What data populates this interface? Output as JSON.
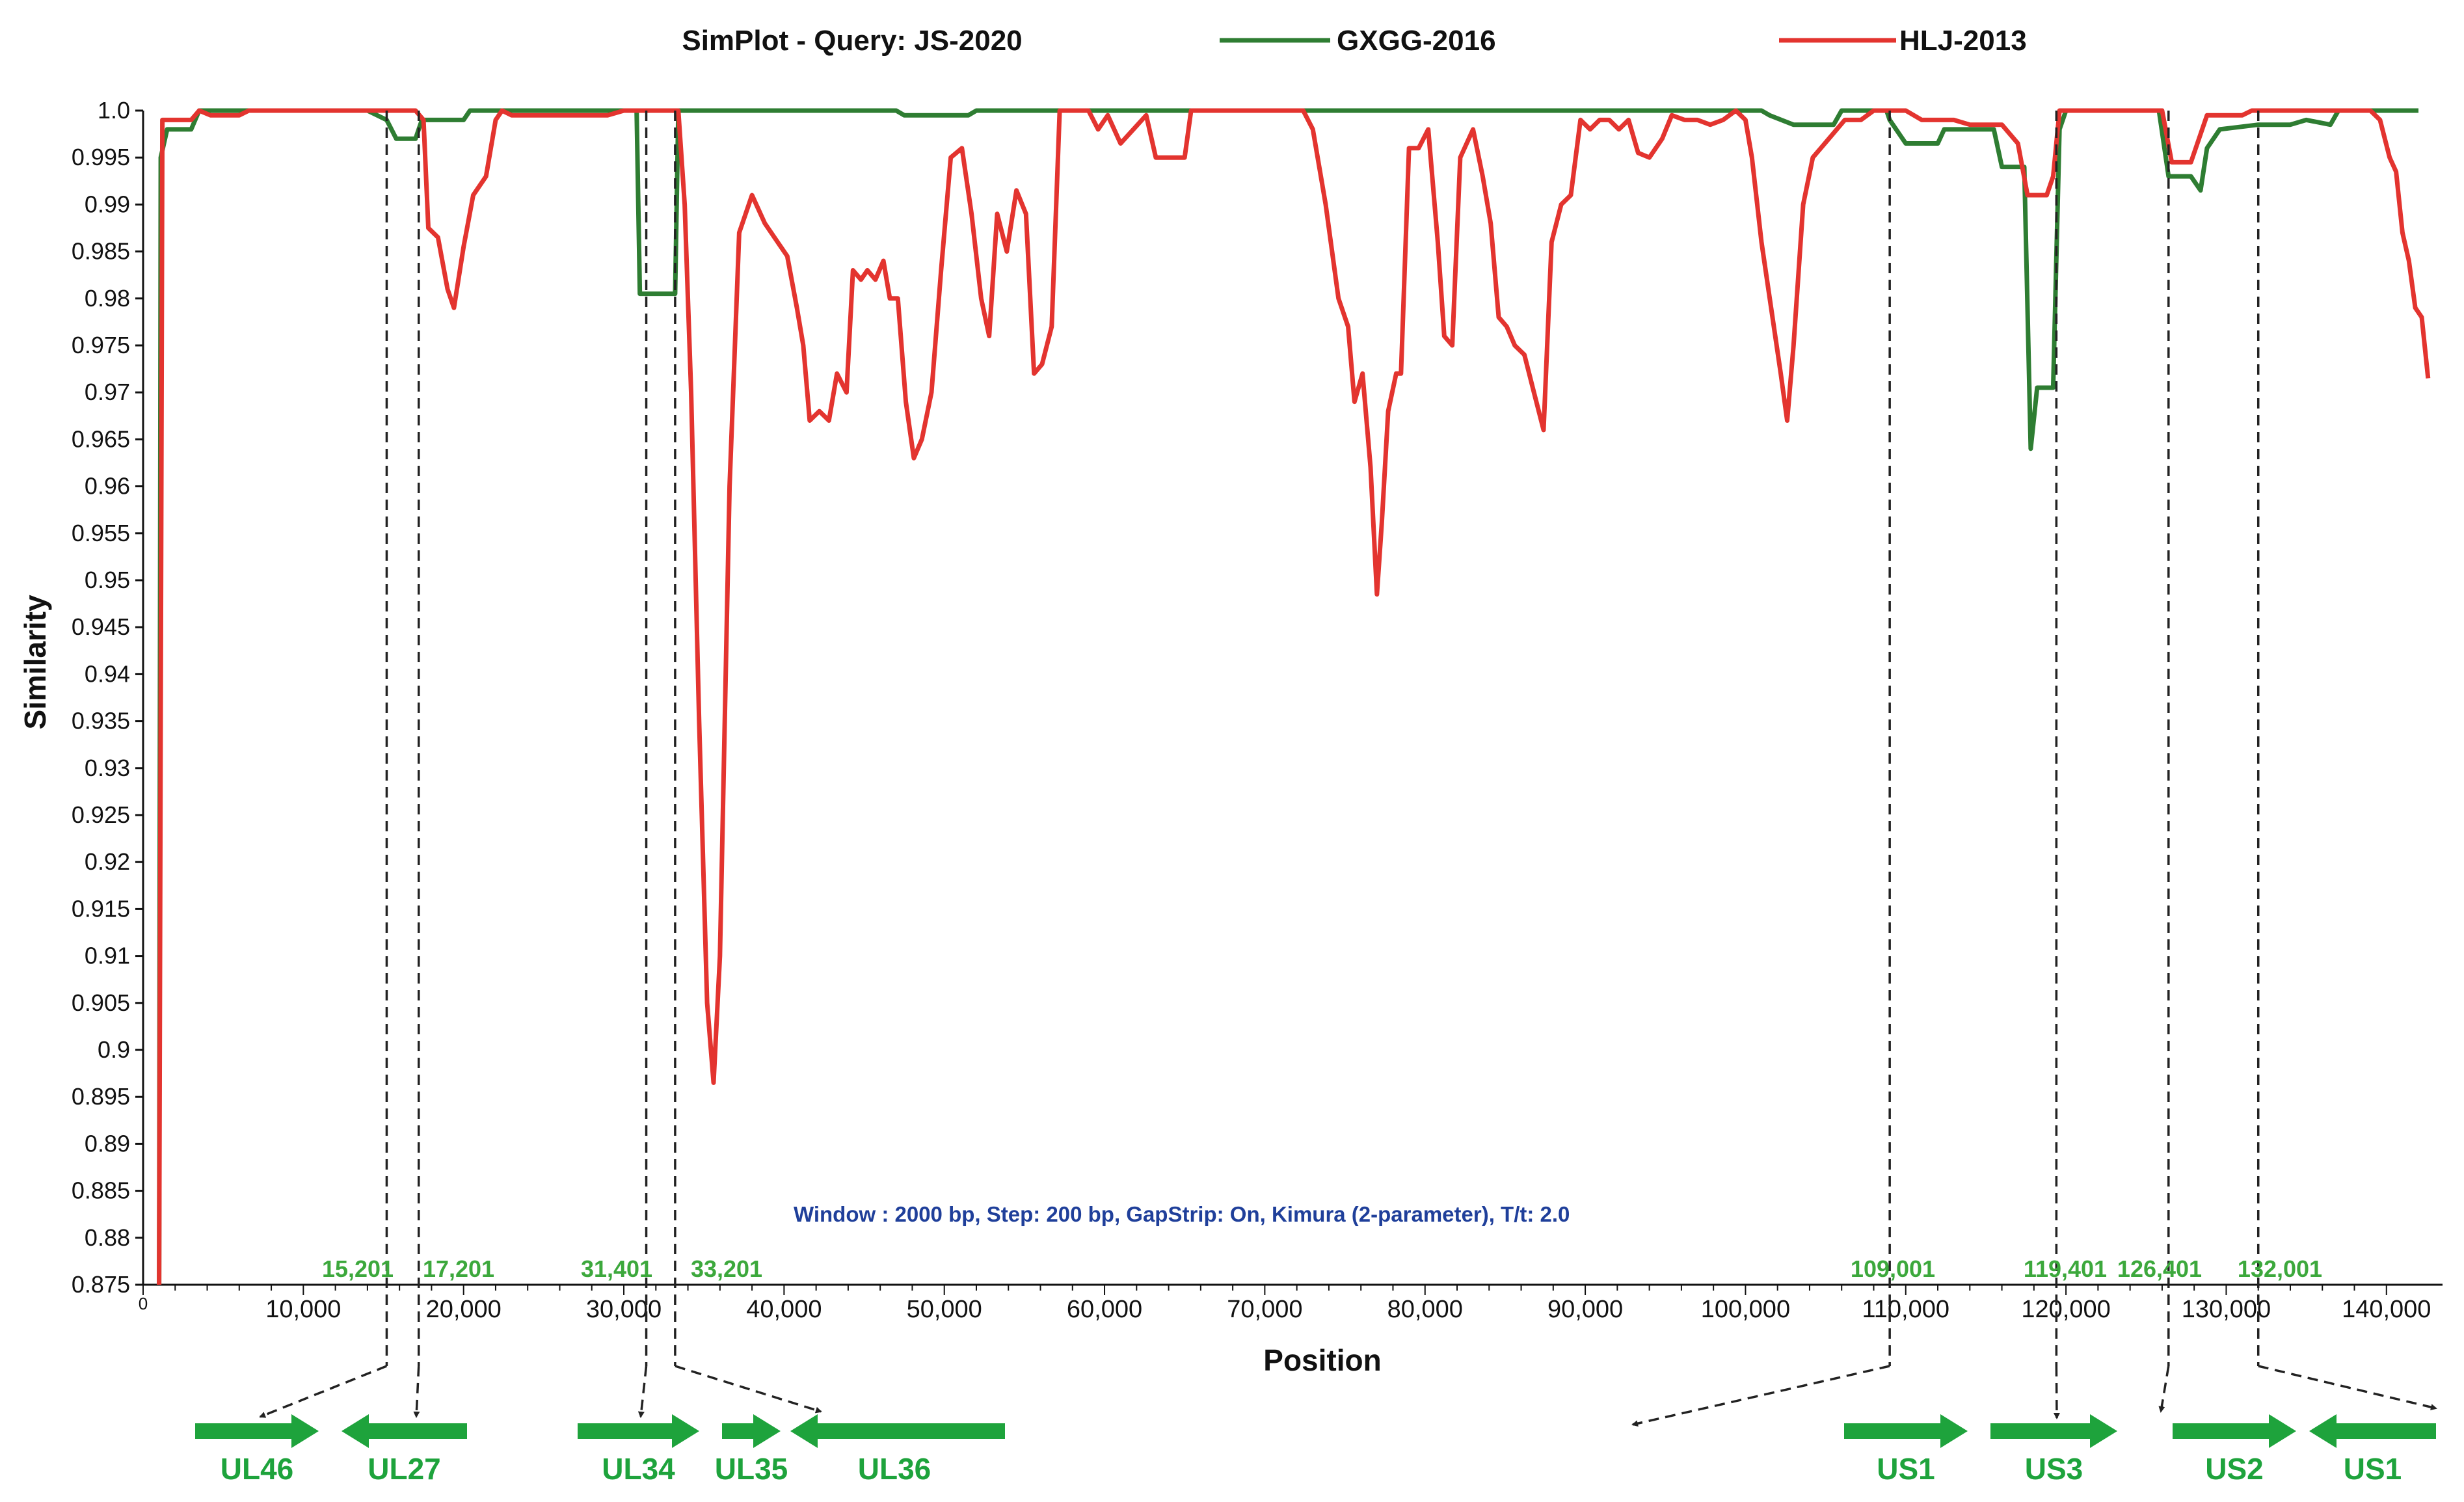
{
  "chart_data": {
    "type": "line",
    "title": "SimPlot - Query: JS-2020",
    "xlabel": "Position",
    "ylabel": "Similarity",
    "xlim": [
      0,
      143500
    ],
    "ylim": [
      0.875,
      1.0
    ],
    "x_ticks": [
      10000,
      20000,
      30000,
      40000,
      50000,
      60000,
      70000,
      80000,
      90000,
      100000,
      110000,
      120000,
      130000,
      140000
    ],
    "x_tick_labels": [
      "10,000",
      "20,000",
      "30,000",
      "40,000",
      "50,000",
      "60,000",
      "70,000",
      "80,000",
      "90,000",
      "100,000",
      "110,000",
      "120,000",
      "130,000",
      "140,000"
    ],
    "x_origin_label": "0",
    "y_ticks": [
      0.875,
      0.88,
      0.885,
      0.89,
      0.895,
      0.9,
      0.905,
      0.91,
      0.915,
      0.92,
      0.925,
      0.93,
      0.935,
      0.94,
      0.945,
      0.95,
      0.955,
      0.96,
      0.965,
      0.97,
      0.975,
      0.98,
      0.985,
      0.99,
      0.995,
      1.0
    ],
    "y_tick_labels": [
      "0.875",
      "0.88",
      "0.885",
      "0.89",
      "0.895",
      "0.9",
      "0.905",
      "0.91",
      "0.915",
      "0.92",
      "0.925",
      "0.93",
      "0.935",
      "0.94",
      "0.945",
      "0.95",
      "0.955",
      "0.96",
      "0.965",
      "0.97",
      "0.975",
      "0.98",
      "0.985",
      "0.99",
      "0.995",
      "1.0"
    ],
    "grid": false,
    "legend_position": "top",
    "annotation": "Window : 2000 bp, Step: 200 bp, GapStrip: On, Kimura (2-parameter), T/t: 2.0",
    "series": [
      {
        "name": "GXGG-2016",
        "color": "#2e7d32",
        "points": [
          [
            1000,
            0.875
          ],
          [
            1100,
            0.995
          ],
          [
            1500,
            0.998
          ],
          [
            3000,
            0.998
          ],
          [
            3500,
            1.0
          ],
          [
            14000,
            1.0
          ],
          [
            15200,
            0.999
          ],
          [
            15800,
            0.997
          ],
          [
            17000,
            0.997
          ],
          [
            17400,
            0.999
          ],
          [
            20000,
            0.999
          ],
          [
            20400,
            1.0
          ],
          [
            30800,
            1.0
          ],
          [
            31000,
            0.9805
          ],
          [
            33200,
            0.9805
          ],
          [
            33400,
            1.0
          ],
          [
            47000,
            1.0
          ],
          [
            47500,
            0.9995
          ],
          [
            51500,
            0.9995
          ],
          [
            52000,
            1.0
          ],
          [
            101000,
            1.0
          ],
          [
            101500,
            0.9995
          ],
          [
            103000,
            0.9985
          ],
          [
            105500,
            0.9985
          ],
          [
            106000,
            1.0
          ],
          [
            108800,
            1.0
          ],
          [
            109000,
            0.999
          ],
          [
            110000,
            0.9965
          ],
          [
            112000,
            0.9965
          ],
          [
            112400,
            0.998
          ],
          [
            115500,
            0.998
          ],
          [
            116000,
            0.994
          ],
          [
            117400,
            0.994
          ],
          [
            117800,
            0.964
          ],
          [
            118200,
            0.9705
          ],
          [
            119200,
            0.9705
          ],
          [
            119600,
            0.998
          ],
          [
            120000,
            1.0
          ],
          [
            125800,
            1.0
          ],
          [
            126400,
            0.993
          ],
          [
            127800,
            0.993
          ],
          [
            128400,
            0.9915
          ],
          [
            128800,
            0.996
          ],
          [
            129600,
            0.998
          ],
          [
            132000,
            0.9985
          ],
          [
            134000,
            0.9985
          ],
          [
            135000,
            0.999
          ],
          [
            136500,
            0.9985
          ],
          [
            137000,
            1.0
          ],
          [
            142000,
            1.0
          ]
        ]
      },
      {
        "name": "HLJ-2013",
        "color": "#e3342f",
        "points": [
          [
            1000,
            0.875
          ],
          [
            1200,
            0.999
          ],
          [
            3000,
            0.999
          ],
          [
            3500,
            1.0
          ],
          [
            4200,
            0.9995
          ],
          [
            6000,
            0.9995
          ],
          [
            6600,
            1.0
          ],
          [
            17000,
            1.0
          ],
          [
            17500,
            0.999
          ],
          [
            17800,
            0.9875
          ],
          [
            18400,
            0.9865
          ],
          [
            19000,
            0.981
          ],
          [
            19400,
            0.979
          ],
          [
            20000,
            0.9855
          ],
          [
            20600,
            0.991
          ],
          [
            21400,
            0.993
          ],
          [
            22000,
            0.999
          ],
          [
            22400,
            1.0
          ],
          [
            23000,
            0.9995
          ],
          [
            29000,
            0.9995
          ],
          [
            30000,
            1.0
          ],
          [
            33400,
            1.0
          ],
          [
            33800,
            0.99
          ],
          [
            34200,
            0.97
          ],
          [
            34700,
            0.935
          ],
          [
            35200,
            0.905
          ],
          [
            35600,
            0.8965
          ],
          [
            36000,
            0.91
          ],
          [
            36600,
            0.96
          ],
          [
            37200,
            0.987
          ],
          [
            38000,
            0.991
          ],
          [
            38800,
            0.988
          ],
          [
            39600,
            0.986
          ],
          [
            40200,
            0.9845
          ],
          [
            40800,
            0.979
          ],
          [
            41200,
            0.975
          ],
          [
            41600,
            0.967
          ],
          [
            42200,
            0.968
          ],
          [
            42800,
            0.967
          ],
          [
            43300,
            0.972
          ],
          [
            43900,
            0.97
          ],
          [
            44300,
            0.983
          ],
          [
            44800,
            0.982
          ],
          [
            45200,
            0.983
          ],
          [
            45700,
            0.982
          ],
          [
            46200,
            0.984
          ],
          [
            46600,
            0.98
          ],
          [
            47100,
            0.98
          ],
          [
            47600,
            0.969
          ],
          [
            48100,
            0.963
          ],
          [
            48600,
            0.965
          ],
          [
            49200,
            0.97
          ],
          [
            49800,
            0.983
          ],
          [
            50400,
            0.995
          ],
          [
            51100,
            0.996
          ],
          [
            51700,
            0.989
          ],
          [
            52300,
            0.98
          ],
          [
            52800,
            0.976
          ],
          [
            53300,
            0.989
          ],
          [
            53900,
            0.985
          ],
          [
            54500,
            0.9915
          ],
          [
            55100,
            0.989
          ],
          [
            55600,
            0.972
          ],
          [
            56100,
            0.973
          ],
          [
            56700,
            0.977
          ],
          [
            57200,
            1.0
          ],
          [
            59000,
            1.0
          ],
          [
            59600,
            0.998
          ],
          [
            60200,
            0.9995
          ],
          [
            61000,
            0.9965
          ],
          [
            61800,
            0.998
          ],
          [
            62600,
            0.9995
          ],
          [
            63200,
            0.995
          ],
          [
            65000,
            0.995
          ],
          [
            65400,
            1.0
          ],
          [
            72400,
            1.0
          ],
          [
            73000,
            0.998
          ],
          [
            73800,
            0.99
          ],
          [
            74600,
            0.98
          ],
          [
            75200,
            0.977
          ],
          [
            75600,
            0.969
          ],
          [
            76100,
            0.972
          ],
          [
            76600,
            0.962
          ],
          [
            77000,
            0.9485
          ],
          [
            77300,
            0.956
          ],
          [
            77700,
            0.968
          ],
          [
            78200,
            0.972
          ],
          [
            78500,
            0.972
          ],
          [
            79000,
            0.996
          ],
          [
            79600,
            0.996
          ],
          [
            80200,
            0.998
          ],
          [
            80800,
            0.986
          ],
          [
            81200,
            0.976
          ],
          [
            81700,
            0.975
          ],
          [
            82200,
            0.995
          ],
          [
            83000,
            0.998
          ],
          [
            83600,
            0.993
          ],
          [
            84100,
            0.988
          ],
          [
            84600,
            0.978
          ],
          [
            85100,
            0.977
          ],
          [
            85600,
            0.975
          ],
          [
            86200,
            0.974
          ],
          [
            86800,
            0.97
          ],
          [
            87400,
            0.966
          ],
          [
            87900,
            0.986
          ],
          [
            88500,
            0.99
          ],
          [
            89100,
            0.991
          ],
          [
            89700,
            0.999
          ],
          [
            90300,
            0.998
          ],
          [
            90900,
            0.999
          ],
          [
            91500,
            0.999
          ],
          [
            92100,
            0.998
          ],
          [
            92700,
            0.999
          ],
          [
            93300,
            0.9955
          ],
          [
            94000,
            0.995
          ],
          [
            94800,
            0.997
          ],
          [
            95400,
            0.9995
          ],
          [
            96200,
            0.999
          ],
          [
            97000,
            0.999
          ],
          [
            97800,
            0.9985
          ],
          [
            98600,
            0.999
          ],
          [
            99400,
            1.0
          ],
          [
            100000,
            0.999
          ],
          [
            100400,
            0.995
          ],
          [
            101000,
            0.986
          ],
          [
            101600,
            0.979
          ],
          [
            102200,
            0.972
          ],
          [
            102600,
            0.967
          ],
          [
            103000,
            0.975
          ],
          [
            103600,
            0.99
          ],
          [
            104200,
            0.995
          ],
          [
            105200,
            0.997
          ],
          [
            106200,
            0.999
          ],
          [
            107200,
            0.999
          ],
          [
            108000,
            1.0
          ],
          [
            110000,
            1.0
          ],
          [
            111000,
            0.999
          ],
          [
            113000,
            0.999
          ],
          [
            114000,
            0.9985
          ],
          [
            116000,
            0.9985
          ],
          [
            117000,
            0.9965
          ],
          [
            117600,
            0.991
          ],
          [
            118800,
            0.991
          ],
          [
            119200,
            0.993
          ],
          [
            119600,
            1.0
          ],
          [
            126000,
            1.0
          ],
          [
            126600,
            0.9945
          ],
          [
            127800,
            0.9945
          ],
          [
            128200,
            0.9965
          ],
          [
            128800,
            0.9995
          ],
          [
            131000,
            0.9995
          ],
          [
            131600,
            1.0
          ],
          [
            139000,
            1.0
          ],
          [
            139600,
            0.999
          ],
          [
            140200,
            0.995
          ],
          [
            140600,
            0.9935
          ],
          [
            141000,
            0.987
          ],
          [
            141400,
            0.984
          ],
          [
            141800,
            0.979
          ],
          [
            142200,
            0.978
          ],
          [
            142600,
            0.9715
          ]
        ]
      }
    ],
    "breakpoints": [
      {
        "x": 15201,
        "label": "15,201"
      },
      {
        "x": 17201,
        "label": "17,201"
      },
      {
        "x": 31401,
        "label": "31,401"
      },
      {
        "x": 33201,
        "label": "33,201"
      },
      {
        "x": 109001,
        "label": "109,001"
      },
      {
        "x": 119401,
        "label": "119,401"
      },
      {
        "x": 126401,
        "label": "126,401"
      },
      {
        "x": 132001,
        "label": "132,001"
      }
    ],
    "genes": [
      {
        "label": "UL46",
        "direction": "right"
      },
      {
        "label": "UL27",
        "direction": "left"
      },
      {
        "label": "UL34",
        "direction": "right"
      },
      {
        "label": "UL35",
        "direction": "right"
      },
      {
        "label": "UL36",
        "direction": "left"
      },
      {
        "label": "US1",
        "direction": "right"
      },
      {
        "label": "US3",
        "direction": "right"
      },
      {
        "label": "US2",
        "direction": "right"
      },
      {
        "label": "US1",
        "direction": "left"
      }
    ],
    "colors": {
      "gene_arrow": "#1ea33c",
      "breakpoint_label": "#3ca83c",
      "annotation_text": "#1f3f9a",
      "guide_line": "#222222"
    }
  }
}
